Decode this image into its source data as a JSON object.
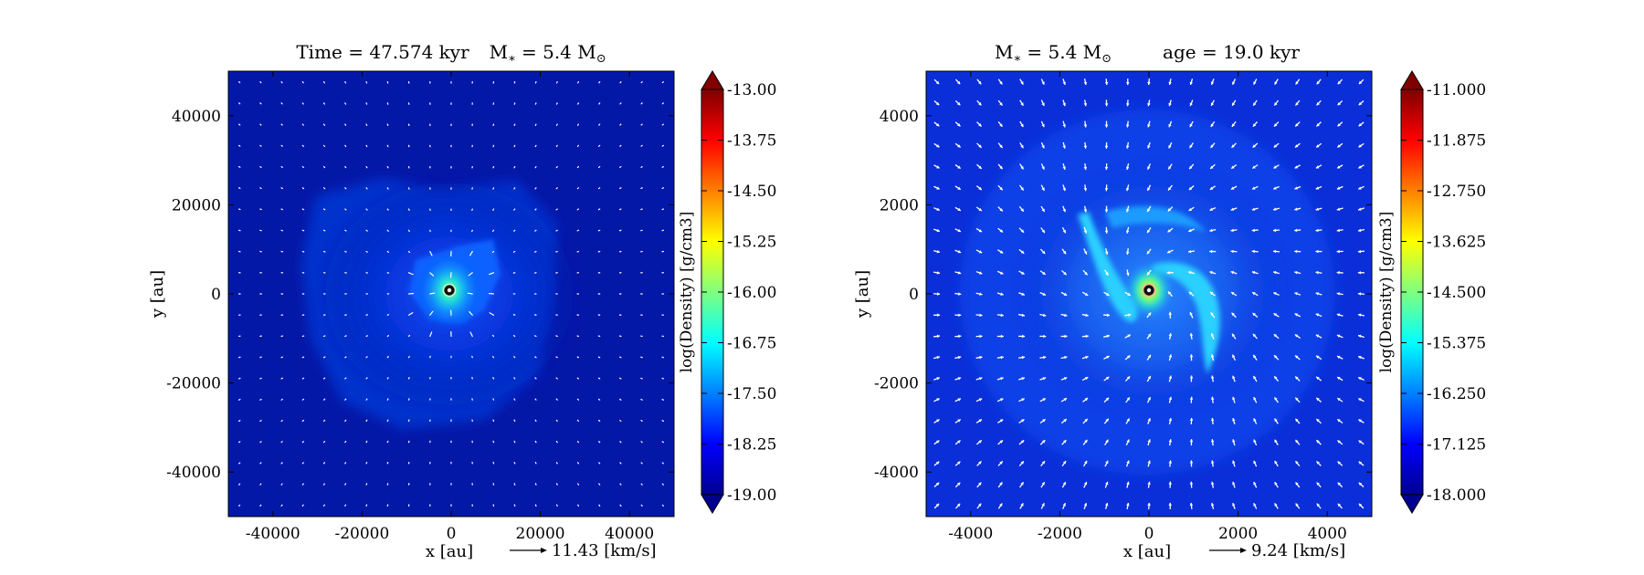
{
  "chart_data": [
    {
      "type": "heatmap",
      "title": "Time = 47.574 kyr    M$_*$ = 5.4 M$_\\odot$",
      "title_parts": [
        "Time = 47.574 kyr",
        "M",
        "∗",
        "= 5.4 M",
        "⊙"
      ],
      "xlabel": "x [au]",
      "ylabel": "y [au]",
      "xlim": [
        -50000,
        50000
      ],
      "ylim": [
        -50000,
        50000
      ],
      "xticks": [
        -40000,
        -20000,
        0,
        20000,
        40000
      ],
      "yticks": [
        -40000,
        -20000,
        0,
        20000,
        40000
      ],
      "xtick_labels": [
        "-40000",
        "-20000",
        "0",
        "20000",
        "40000"
      ],
      "ytick_labels": [
        "40000",
        "20000",
        "0",
        "-20000",
        "-40000"
      ],
      "colorbar": {
        "label": "log(Density) [g/cm3]",
        "range": [
          -19.0,
          -13.0
        ],
        "tick_labels": [
          "-13.00",
          "-13.75",
          "-14.50",
          "-15.25",
          "-16.00",
          "-16.75",
          "-17.50",
          "-18.25",
          "-19.00"
        ],
        "colormap": "jet",
        "extend": "both"
      },
      "quiver_key": "11.43 [km/s]",
      "center_marker": "sink particle at (0, 0)",
      "background_color": "#0418a8"
    },
    {
      "type": "heatmap",
      "title": "M$_*$ = 5.4 M$_\\odot$    age = 19.0 kyr",
      "title_parts": [
        "M",
        "∗",
        "= 5.4 M",
        "⊙",
        "age = 19.0 kyr"
      ],
      "xlabel": "x [au]",
      "ylabel": "y [au]",
      "xlim": [
        -5000,
        5000
      ],
      "ylim": [
        -5000,
        5000
      ],
      "xticks": [
        -4000,
        -2000,
        0,
        2000,
        4000
      ],
      "yticks": [
        -4000,
        -2000,
        0,
        2000,
        4000
      ],
      "xtick_labels": [
        "-4000",
        "-2000",
        "0",
        "2000",
        "4000"
      ],
      "ytick_labels": [
        "4000",
        "2000",
        "0",
        "-2000",
        "-4000"
      ],
      "colorbar": {
        "label": "log(Density) [g/cm3]",
        "range": [
          -18.0,
          -11.0
        ],
        "tick_labels": [
          "-11.000",
          "-11.875",
          "-12.750",
          "-13.625",
          "-14.500",
          "-15.375",
          "-16.250",
          "-17.125",
          "-18.000"
        ],
        "colormap": "jet",
        "extend": "both"
      },
      "quiver_key": "9.24 [km/s]",
      "center_marker": "sink particle at (0, 0)",
      "background_color": "#0a2fd8"
    }
  ]
}
